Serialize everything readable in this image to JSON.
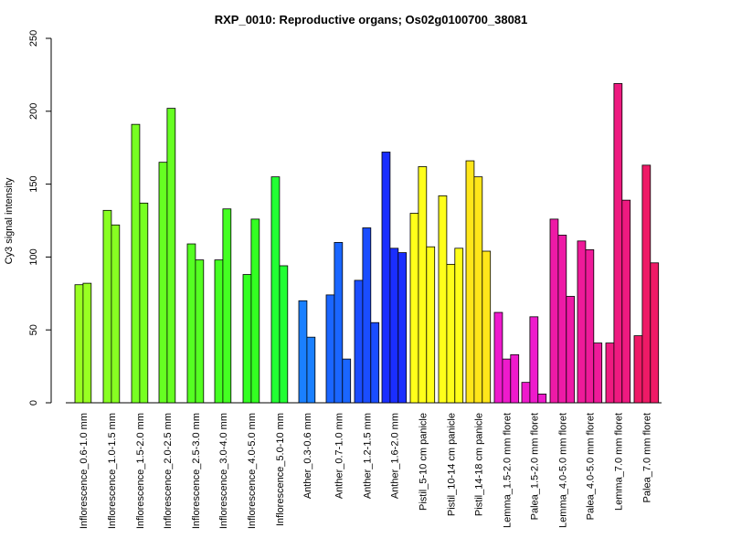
{
  "chart_data": {
    "type": "bar",
    "title": "RXP_0010: Reproductive organs; Os02g0100700_38081",
    "xlabel": "",
    "ylabel": "Cy3 signal intensity",
    "ylim": [
      0,
      250
    ],
    "yticks": [
      0,
      50,
      100,
      150,
      200,
      250
    ],
    "grid": false,
    "legend": "none",
    "categories": [
      "Inflorescence_0.6-1.0 mm",
      "Inflorescence_1.0-1.5 mm",
      "Inflorescence_1.5-2.0 mm",
      "Inflorescence_2.0-2.5 mm",
      "Inflorescence_2.5-3.0 mm",
      "Inflorescence_3.0-4.0 mm",
      "Inflorescence_4.0-5.0 mm",
      "Inflorescence_5.0-10 mm",
      "Anther_0.3-0.6 mm",
      "Anther_0.7-1.0 mm",
      "Anther_1.2-1.5 mm",
      "Anther_1.6-2.0 mm",
      "Pistil_5-10 cm panicle",
      "Pistil_10-14 cm panicle",
      "Pistil_14-18 cm panicle",
      "Lemma_1.5-2.0 mm floret",
      "Palea_1.5-2.0 mm floret",
      "Lemma_4.0-5.0 mm floret",
      "Palea_4.0-5.0 mm floret",
      "Lemma_7.0 mm floret",
      "Palea_7.0 mm floret"
    ],
    "groups": [
      {
        "color": "#99ff22",
        "values": [
          81,
          82
        ]
      },
      {
        "color": "#88ff22",
        "values": [
          132,
          122
        ]
      },
      {
        "color": "#77ff22",
        "values": [
          191,
          137
        ]
      },
      {
        "color": "#66ff22",
        "values": [
          165,
          202
        ]
      },
      {
        "color": "#55ff22",
        "values": [
          109,
          98
        ]
      },
      {
        "color": "#44ff22",
        "values": [
          98,
          133
        ]
      },
      {
        "color": "#33ff22",
        "values": [
          88,
          126
        ]
      },
      {
        "color": "#22ff33",
        "values": [
          155,
          94
        ]
      },
      {
        "color": "#1a80ff",
        "values": [
          70,
          45
        ]
      },
      {
        "color": "#1a66ff",
        "values": [
          74,
          110,
          30
        ]
      },
      {
        "color": "#1a4dff",
        "values": [
          84,
          120,
          55
        ]
      },
      {
        "color": "#1a2eff",
        "values": [
          172,
          106,
          103
        ]
      },
      {
        "color": "#ffff1a",
        "values": [
          130,
          162,
          107
        ]
      },
      {
        "color": "#ffff1a",
        "values": [
          142,
          95,
          106
        ]
      },
      {
        "color": "#ffe61a",
        "values": [
          166,
          155,
          104
        ]
      },
      {
        "color": "#ee1acc",
        "values": [
          62,
          30,
          33
        ]
      },
      {
        "color": "#ee1acc",
        "values": [
          14,
          59,
          6
        ]
      },
      {
        "color": "#ee1aa6",
        "values": [
          126,
          115,
          73
        ]
      },
      {
        "color": "#ee1a99",
        "values": [
          111,
          105,
          41
        ]
      },
      {
        "color": "#ee1a80",
        "values": [
          41,
          219,
          139
        ]
      },
      {
        "color": "#ee1a66",
        "values": [
          46,
          163,
          96
        ]
      }
    ]
  }
}
